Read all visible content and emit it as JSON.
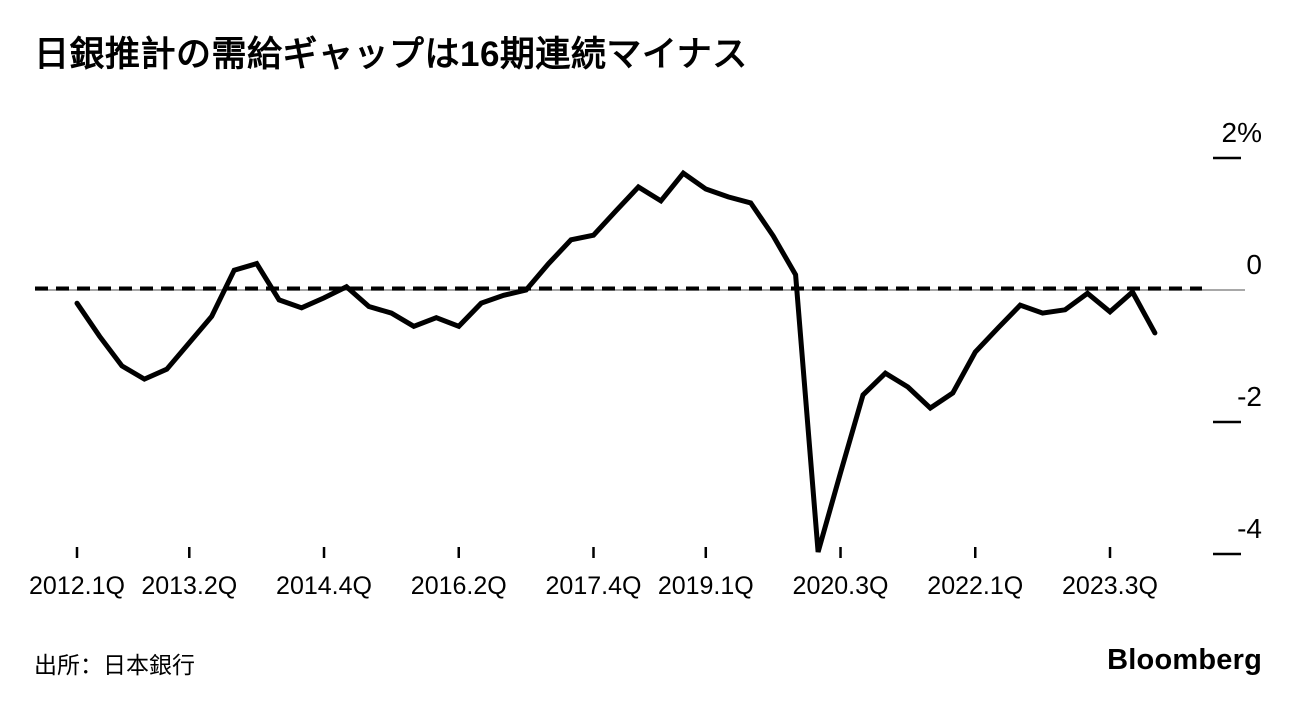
{
  "header": {
    "title": "日銀推計の需給ギャップは16期連続マイナス"
  },
  "footer": {
    "source": "出所：日本銀行",
    "brand": "Bloomberg"
  },
  "colors": {
    "background": "#ffffff",
    "series_line": "#000000",
    "zero_line": "#8c8c8c",
    "reference_dashed": "#000000",
    "text": "#000000"
  },
  "chart_data": {
    "type": "line",
    "title": "日銀推計の需給ギャップは16期連続マイナス",
    "unit": "%",
    "grid": false,
    "legend": "none",
    "reference_line": {
      "value": 0,
      "style": "dashed"
    },
    "y_axis": {
      "side": "right",
      "ylim": [
        -4.6,
        2.3
      ],
      "ticks": [
        {
          "label": "2%",
          "value": 2
        },
        {
          "label": "0",
          "value": 0
        },
        {
          "label": "-2",
          "value": -2
        },
        {
          "label": "-4",
          "value": -4
        }
      ]
    },
    "x_axis": {
      "tick_indices": [
        0,
        5,
        11,
        17,
        23,
        28,
        34,
        40,
        46
      ],
      "tick_labels": [
        "2012.1Q",
        "2013.2Q",
        "2014.4Q",
        "2016.2Q",
        "2017.4Q",
        "2019.1Q",
        "2020.3Q",
        "2022.1Q",
        "2023.3Q"
      ]
    },
    "quarters": [
      "2012.1Q",
      "2012.2Q",
      "2012.3Q",
      "2012.4Q",
      "2013.1Q",
      "2013.2Q",
      "2013.3Q",
      "2013.4Q",
      "2014.1Q",
      "2014.2Q",
      "2014.3Q",
      "2014.4Q",
      "2015.1Q",
      "2015.2Q",
      "2015.3Q",
      "2015.4Q",
      "2016.1Q",
      "2016.2Q",
      "2016.3Q",
      "2016.4Q",
      "2017.1Q",
      "2017.2Q",
      "2017.3Q",
      "2017.4Q",
      "2018.1Q",
      "2018.2Q",
      "2018.3Q",
      "2018.4Q",
      "2019.1Q",
      "2019.2Q",
      "2019.3Q",
      "2019.4Q",
      "2020.1Q",
      "2020.2Q",
      "2020.3Q",
      "2020.4Q",
      "2021.1Q",
      "2021.2Q",
      "2021.3Q",
      "2021.4Q",
      "2022.1Q",
      "2022.2Q",
      "2022.3Q",
      "2022.4Q",
      "2023.1Q",
      "2023.2Q",
      "2023.3Q",
      "2023.4Q",
      "2024.1Q"
    ],
    "series": [
      {
        "name": "需給ギャップ",
        "values": [
          -0.2,
          -0.7,
          -1.15,
          -1.35,
          -1.2,
          -0.8,
          -0.4,
          0.3,
          0.4,
          -0.15,
          -0.27,
          -0.12,
          0.05,
          -0.25,
          -0.35,
          -0.55,
          -0.42,
          -0.55,
          -0.2,
          -0.08,
          0.0,
          0.4,
          0.76,
          0.83,
          1.2,
          1.56,
          1.35,
          1.77,
          1.53,
          1.41,
          1.32,
          0.82,
          0.23,
          -3.97,
          -2.77,
          -1.59,
          -1.26,
          -1.47,
          -1.79,
          -1.56,
          -0.94,
          -0.58,
          -0.23,
          -0.35,
          -0.3,
          -0.05,
          -0.33,
          -0.03,
          -0.65
        ]
      }
    ]
  }
}
